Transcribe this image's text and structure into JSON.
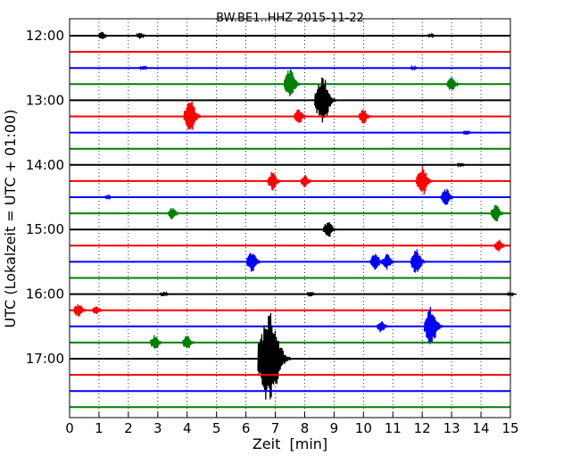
{
  "chart_data": {
    "type": "line",
    "title": "BW.BE1..HHZ 2015-11-22",
    "xlabel": "Zeit  [min]",
    "ylabel": "UTC (Lokalzeit = UTC + 01:00)",
    "xlim": [
      0,
      15
    ],
    "x_ticks": [
      "0",
      "1",
      "2",
      "3",
      "4",
      "5",
      "6",
      "7",
      "8",
      "9",
      "10",
      "11",
      "12",
      "13",
      "14",
      "15"
    ],
    "y_tick_labels": [
      "12:00",
      "13:00",
      "14:00",
      "15:00",
      "16:00",
      "17:00"
    ],
    "y_tick_rows": [
      0,
      4,
      8,
      12,
      16,
      20
    ],
    "row_interval_min": 15,
    "row_colors": [
      "#000000",
      "#ff0000",
      "#0000ff",
      "#008000"
    ],
    "vertical_grid": "dotted",
    "rows": [
      {
        "start": "12:00",
        "events": [
          {
            "t": 1.1,
            "a": 0.25
          },
          {
            "t": 2.4,
            "a": 0.2
          },
          {
            "t": 12.3,
            "a": 0.1
          }
        ]
      },
      {
        "start": "12:15",
        "events": []
      },
      {
        "start": "12:30",
        "events": [
          {
            "t": 2.5,
            "a": 0.15
          },
          {
            "t": 11.7,
            "a": 0.1
          }
        ]
      },
      {
        "start": "12:45",
        "events": [
          {
            "t": 7.5,
            "a": 1.0
          },
          {
            "t": 13.0,
            "a": 0.5
          }
        ]
      },
      {
        "start": "13:00",
        "events": [
          {
            "t": 8.6,
            "a": 1.6
          }
        ]
      },
      {
        "start": "13:15",
        "events": [
          {
            "t": 4.1,
            "a": 1.1
          },
          {
            "t": 7.8,
            "a": 0.5
          },
          {
            "t": 10.0,
            "a": 0.5
          }
        ]
      },
      {
        "start": "13:30",
        "events": [
          {
            "t": 13.5,
            "a": 0.15
          }
        ]
      },
      {
        "start": "13:45",
        "events": []
      },
      {
        "start": "14:00",
        "events": [
          {
            "t": 13.3,
            "a": 0.12
          }
        ]
      },
      {
        "start": "14:15",
        "events": [
          {
            "t": 6.9,
            "a": 0.6
          },
          {
            "t": 8.0,
            "a": 0.4
          },
          {
            "t": 12.0,
            "a": 1.0
          }
        ]
      },
      {
        "start": "14:30",
        "events": [
          {
            "t": 1.3,
            "a": 0.1
          },
          {
            "t": 12.8,
            "a": 0.6
          }
        ]
      },
      {
        "start": "14:45",
        "events": [
          {
            "t": 3.5,
            "a": 0.4
          },
          {
            "t": 14.5,
            "a": 0.6
          }
        ]
      },
      {
        "start": "15:00",
        "events": [
          {
            "t": 8.8,
            "a": 0.6
          }
        ]
      },
      {
        "start": "15:15",
        "events": [
          {
            "t": 14.6,
            "a": 0.4
          }
        ]
      },
      {
        "start": "15:30",
        "events": [
          {
            "t": 6.2,
            "a": 0.7
          },
          {
            "t": 10.4,
            "a": 0.6
          },
          {
            "t": 10.8,
            "a": 0.5
          },
          {
            "t": 11.8,
            "a": 0.8
          }
        ]
      },
      {
        "start": "15:45",
        "events": []
      },
      {
        "start": "16:00",
        "events": [
          {
            "t": 3.2,
            "a": 0.15
          },
          {
            "t": 8.2,
            "a": 0.15
          },
          {
            "t": 15.0,
            "a": 0.1
          }
        ]
      },
      {
        "start": "16:15",
        "events": [
          {
            "t": 0.3,
            "a": 0.5
          },
          {
            "t": 0.9,
            "a": 0.3
          }
        ]
      },
      {
        "start": "16:30",
        "events": [
          {
            "t": 10.6,
            "a": 0.4
          },
          {
            "t": 12.3,
            "a": 1.3
          }
        ]
      },
      {
        "start": "16:45",
        "events": [
          {
            "t": 2.9,
            "a": 0.5
          },
          {
            "t": 4.0,
            "a": 0.5
          }
        ]
      },
      {
        "start": "17:00",
        "events": [
          {
            "t": 6.8,
            "a": 3.0
          }
        ]
      },
      {
        "start": "17:15",
        "events": []
      },
      {
        "start": "17:30",
        "events": []
      },
      {
        "start": "17:45",
        "events": []
      }
    ]
  }
}
